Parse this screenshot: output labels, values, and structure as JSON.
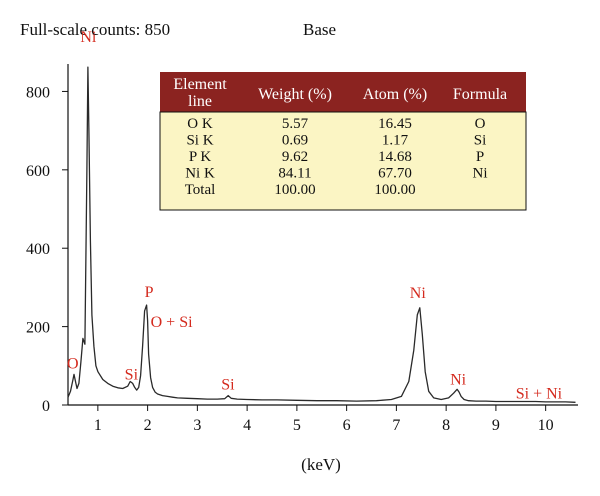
{
  "header": {
    "left": "Full-scale counts: 850",
    "right": "Base"
  },
  "colors": {
    "spectrum": "#2a2a2a",
    "peak_label": "#d42a1e",
    "table_header": "#8b2320",
    "table_body": "#fbf5c4"
  },
  "chart_data": {
    "type": "line",
    "title": "",
    "xlabel": "(keV)",
    "ylabel": "",
    "xlim": [
      0.4,
      10.65
    ],
    "ylim": [
      0,
      870
    ],
    "xticks": [
      1,
      2,
      3,
      4,
      5,
      6,
      7,
      8,
      9,
      10
    ],
    "yticks": [
      0,
      200,
      400,
      600,
      800
    ],
    "grid": false,
    "series": [
      {
        "x": [
          0.4,
          0.45,
          0.5,
          0.52,
          0.55,
          0.58,
          0.62,
          0.66,
          0.7,
          0.74,
          0.78,
          0.8,
          0.82,
          0.85,
          0.88,
          0.92,
          0.96,
          1.0,
          1.1,
          1.2,
          1.3,
          1.4,
          1.5,
          1.6,
          1.65,
          1.7,
          1.74,
          1.78,
          1.82,
          1.86,
          1.9,
          1.94,
          1.98,
          2.0,
          2.02,
          2.06,
          2.1,
          2.15,
          2.2,
          2.3,
          2.4,
          2.5,
          2.6,
          2.8,
          3.0,
          3.2,
          3.4,
          3.55,
          3.62,
          3.68,
          3.8,
          4.0,
          4.3,
          4.6,
          5.0,
          5.4,
          5.8,
          6.2,
          6.6,
          6.9,
          7.1,
          7.25,
          7.35,
          7.42,
          7.47,
          7.52,
          7.58,
          7.65,
          7.75,
          7.9,
          8.05,
          8.15,
          8.22,
          8.26,
          8.3,
          8.36,
          8.45,
          8.6,
          8.8,
          9.0,
          9.2,
          9.4,
          9.6,
          9.8,
          10.0,
          10.2,
          10.4,
          10.6
        ],
        "y": [
          20,
          35,
          65,
          78,
          60,
          42,
          55,
          110,
          170,
          155,
          600,
          862,
          700,
          420,
          230,
          150,
          100,
          85,
          65,
          55,
          48,
          44,
          42,
          48,
          60,
          55,
          45,
          38,
          45,
          75,
          150,
          240,
          255,
          215,
          130,
          70,
          45,
          33,
          28,
          24,
          22,
          20,
          18,
          17,
          16,
          15,
          15,
          16,
          24,
          17,
          15,
          14,
          13,
          13,
          12,
          11,
          11,
          10,
          11,
          14,
          22,
          60,
          140,
          230,
          248,
          180,
          85,
          35,
          18,
          14,
          18,
          30,
          40,
          33,
          22,
          14,
          11,
          10,
          10,
          9,
          9,
          9,
          9,
          9,
          8,
          8,
          8,
          7
        ]
      }
    ],
    "annotations": [
      {
        "text": "Ni",
        "x": 0.85,
        "y": 862
      },
      {
        "text": "O",
        "x": 0.52,
        "y": 78
      },
      {
        "text": "Si",
        "x": 1.74,
        "y": 55
      },
      {
        "text": "P",
        "x": 2.0,
        "y": 255
      },
      {
        "text": "O + Si",
        "x": 2.0,
        "y": 255
      },
      {
        "text": "Si",
        "x": 3.62,
        "y": 24
      },
      {
        "text": "Ni",
        "x": 7.47,
        "y": 248
      },
      {
        "text": "Ni",
        "x": 8.26,
        "y": 40
      },
      {
        "text": "Si + Ni",
        "x": 9.6,
        "y": 9
      }
    ]
  },
  "table": {
    "headers": [
      "Element line",
      "Weight (%)",
      "Atom (%)",
      "Formula"
    ],
    "header_line1": "Element",
    "header_line2": "line",
    "rows": [
      [
        "O K",
        "5.57",
        "16.45",
        "O"
      ],
      [
        "Si K",
        "0.69",
        "1.17",
        "Si"
      ],
      [
        "P K",
        "9.62",
        "14.68",
        "P"
      ],
      [
        "Ni K",
        "84.11",
        "67.70",
        "Ni"
      ],
      [
        "Total",
        "100.00",
        "100.00",
        ""
      ]
    ]
  }
}
